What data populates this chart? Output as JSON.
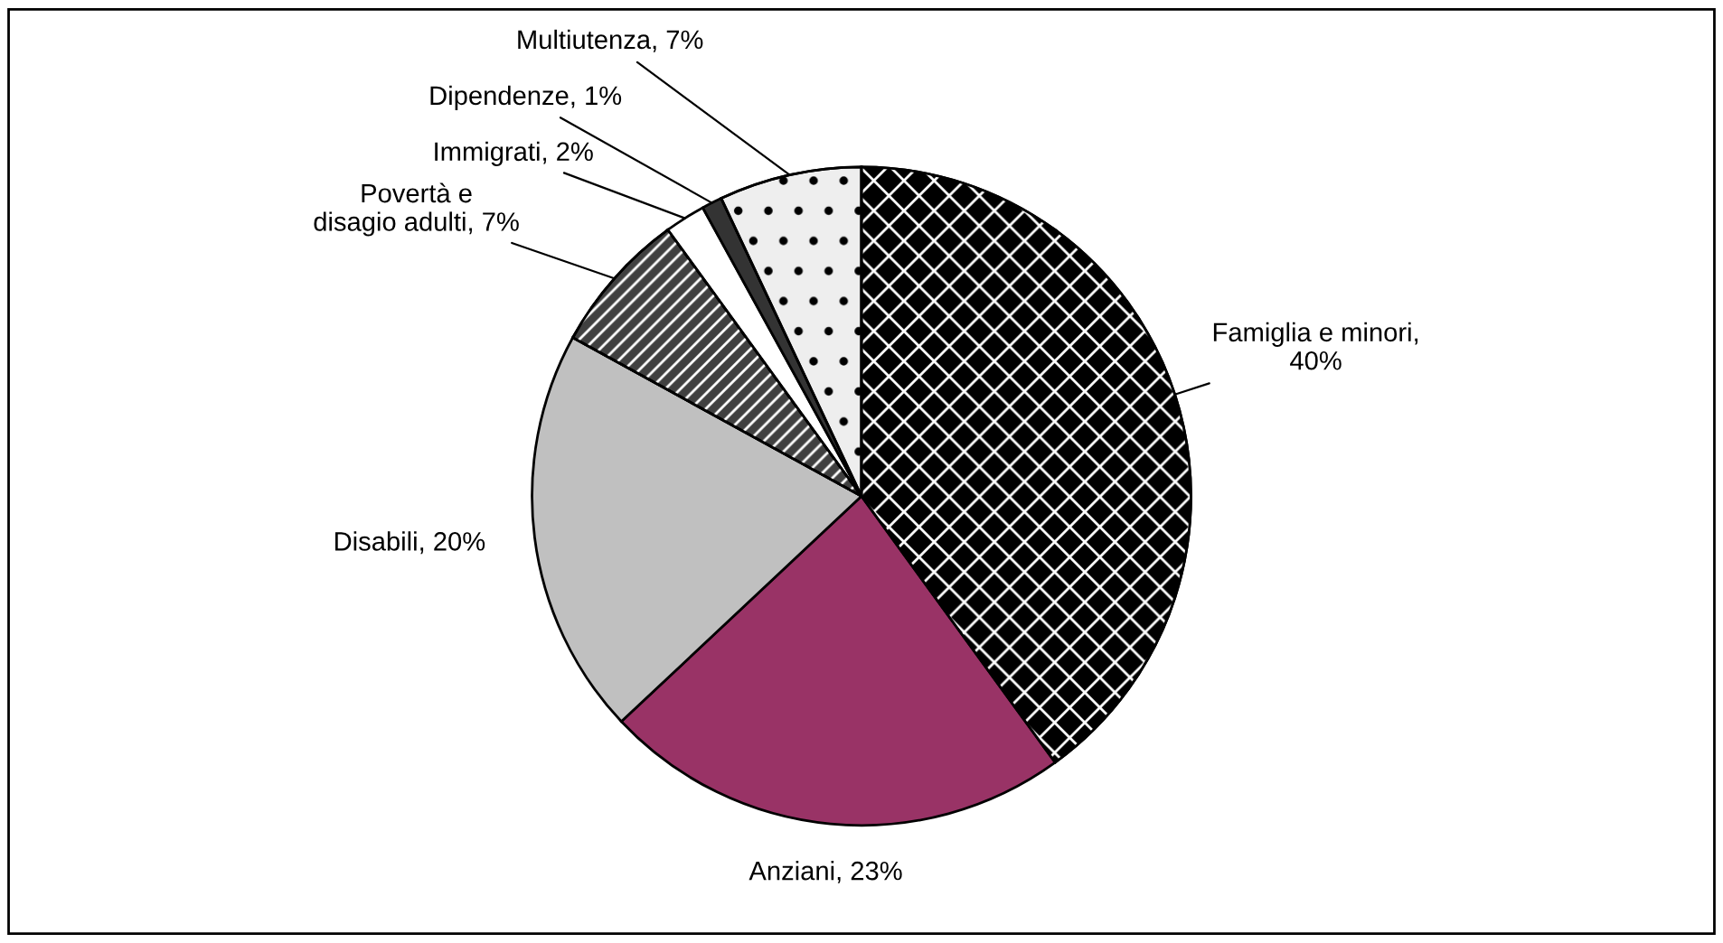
{
  "chart_data": {
    "type": "pie",
    "categories": [
      "Famiglia e minori,\n40%",
      "Anziani, 23%",
      "Disabili, 20%",
      "Povertà e\ndisagio adulti, 7%",
      "Immigrati, 2%",
      "Dipendenze, 1%",
      "Multiutenza, 7%"
    ],
    "values": [
      40,
      23,
      20,
      7,
      2,
      1,
      7
    ],
    "colors": [
      "#000000",
      "#993366",
      "#c0c0c0",
      "#404040",
      "#ffffff",
      "#333333",
      "#eeeeee"
    ]
  }
}
